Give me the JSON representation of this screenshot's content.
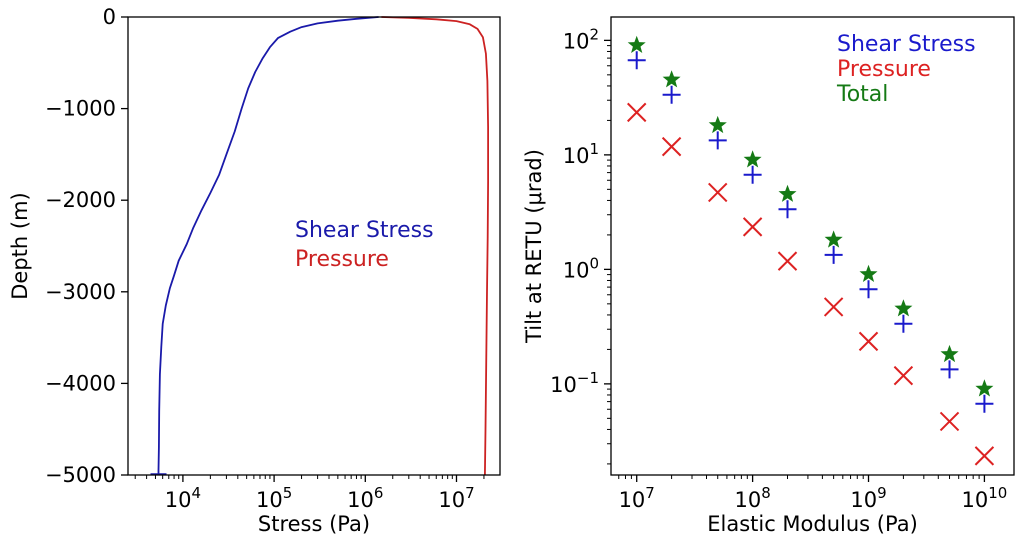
{
  "chart_data": [
    {
      "type": "line",
      "xlabel": "Stress (Pa)",
      "ylabel": "Depth (m)",
      "xscale": "log",
      "xlim": [
        2500,
        30000000
      ],
      "ylim": [
        -5000,
        0
      ],
      "x_ticks": [
        10000,
        100000,
        1000000,
        10000000
      ],
      "x_tick_labels": [
        {
          "base": "10",
          "exp": "4"
        },
        {
          "base": "10",
          "exp": "5"
        },
        {
          "base": "10",
          "exp": "6"
        },
        {
          "base": "10",
          "exp": "7"
        }
      ],
      "y_ticks": [
        0,
        -1000,
        -2000,
        -3000,
        -4000,
        -5000
      ],
      "y_tick_labels": [
        "0",
        "−1000",
        "−2000",
        "−3000",
        "−4000",
        "−5000"
      ],
      "legend_position": "center-right",
      "series": [
        {
          "name": "Shear Stress",
          "color": "#1a1aaa",
          "x": [
            1400000,
            800000,
            500000,
            300000,
            200000,
            150000,
            110000,
            90000,
            75000,
            62000,
            52000,
            44000,
            37000,
            30000,
            25000,
            20000,
            16000,
            13000,
            11000,
            9000,
            8000,
            7200,
            6500,
            6000,
            5800,
            5600,
            5500,
            5450,
            5400,
            5400
          ],
          "y": [
            0,
            -20,
            -40,
            -70,
            -110,
            -160,
            -230,
            -330,
            -450,
            -600,
            -780,
            -1000,
            -1250,
            -1500,
            -1720,
            -1920,
            -2110,
            -2300,
            -2480,
            -2660,
            -2820,
            -2960,
            -3150,
            -3350,
            -3600,
            -3900,
            -4300,
            -4700,
            -4950,
            -5000
          ]
        },
        {
          "name": "Pressure",
          "color": "#cc2222",
          "x": [
            1500000,
            3000000,
            6000000,
            10000000,
            14000000,
            17000000,
            19500000,
            21000000,
            21800000,
            22200000,
            22200000,
            22000000,
            21600000,
            21200000,
            20800000,
            20500000
          ],
          "y": [
            0,
            -10,
            -25,
            -45,
            -80,
            -130,
            -220,
            -400,
            -700,
            -1200,
            -1800,
            -2400,
            -3000,
            -3800,
            -4500,
            -5000
          ]
        }
      ]
    },
    {
      "type": "scatter",
      "xlabel": "Elastic Modulus (Pa)",
      "ylabel": "Tilt at RETU (μrad)",
      "xscale": "log",
      "yscale": "log",
      "xlim": [
        6000000,
        18000000000
      ],
      "ylim": [
        0.016,
        160
      ],
      "x_ticks": [
        10000000,
        100000000,
        1000000000,
        10000000000
      ],
      "x_tick_labels": [
        {
          "base": "10",
          "exp": "7"
        },
        {
          "base": "10",
          "exp": "8"
        },
        {
          "base": "10",
          "exp": "9"
        },
        {
          "base": "10",
          "exp": "10"
        }
      ],
      "y_ticks": [
        0.1,
        1,
        10,
        100
      ],
      "y_tick_labels": [
        {
          "base": "10",
          "exp": "−1"
        },
        {
          "base": "10",
          "exp": "0"
        },
        {
          "base": "10",
          "exp": "1"
        },
        {
          "base": "10",
          "exp": "2"
        }
      ],
      "legend_position": "top-right",
      "x": [
        10000000,
        20000000,
        50000000,
        100000000,
        200000000,
        500000000,
        1000000000,
        2000000000,
        5000000000,
        10000000000
      ],
      "series": [
        {
          "name": "Shear Stress",
          "color": "#1a1acc",
          "marker": "plus",
          "values": [
            67,
            33.5,
            13.4,
            6.7,
            3.35,
            1.34,
            0.67,
            0.335,
            0.134,
            0.067
          ]
        },
        {
          "name": "Pressure",
          "color": "#dd2222",
          "marker": "x",
          "values": [
            23.5,
            11.8,
            4.7,
            2.35,
            1.18,
            0.47,
            0.235,
            0.118,
            0.047,
            0.0235
          ]
        },
        {
          "name": "Total",
          "color": "#157a15",
          "marker": "star",
          "values": [
            90.5,
            45.3,
            18.1,
            9.05,
            4.53,
            1.81,
            0.905,
            0.453,
            0.181,
            0.0905
          ]
        }
      ]
    }
  ]
}
